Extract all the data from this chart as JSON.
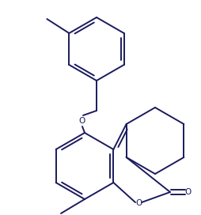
{
  "bg_color": "#ffffff",
  "line_color": "#1a1a5e",
  "line_width": 1.4,
  "figsize": [
    2.54,
    2.72
  ],
  "dpi": 100,
  "xlim": [
    0,
    254
  ],
  "ylim": [
    0,
    272
  ]
}
